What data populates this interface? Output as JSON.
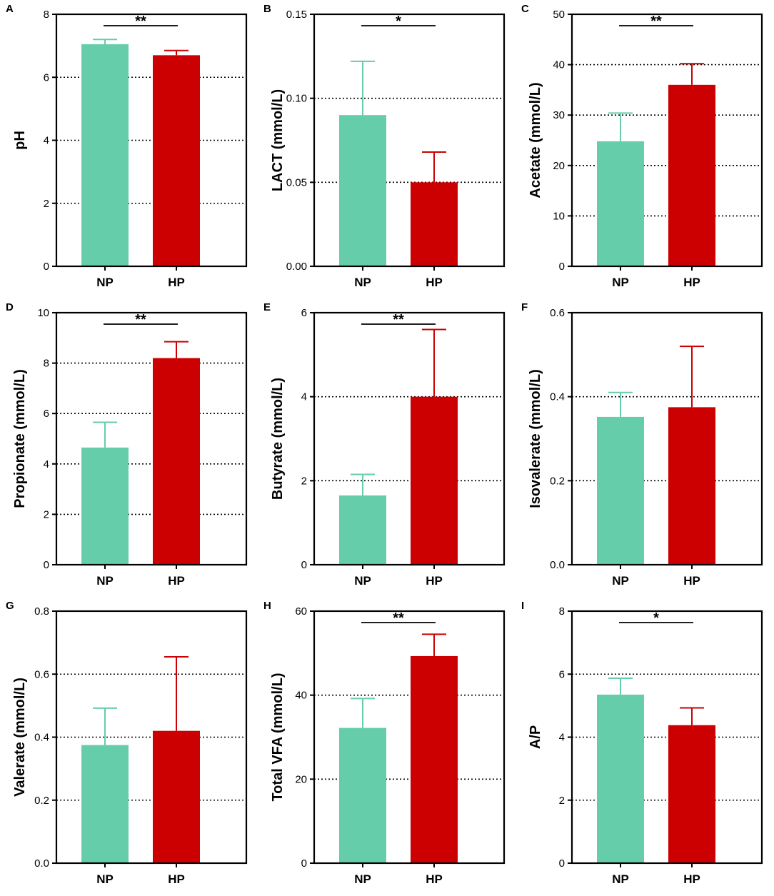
{
  "colors": {
    "NP": "#66cdaa",
    "HP": "#cc0000",
    "axis": "#000000"
  },
  "chart_data": [
    {
      "panel": "A",
      "type": "bar",
      "ylabel": "pH",
      "categories": [
        "NP",
        "HP"
      ],
      "values": [
        7.05,
        6.7
      ],
      "errors": [
        0.15,
        0.15
      ],
      "ylim": [
        0,
        8
      ],
      "ticks": [
        "0",
        "2",
        "4",
        "6",
        "8"
      ],
      "tick_values": [
        0,
        2,
        4,
        6,
        8
      ],
      "gridlines": [
        2,
        4,
        6
      ],
      "significance": "**"
    },
    {
      "panel": "B",
      "type": "bar",
      "ylabel": "LACT (mmol/L)",
      "categories": [
        "NP",
        "HP"
      ],
      "values": [
        0.09,
        0.05
      ],
      "errors": [
        0.032,
        0.018
      ],
      "ylim": [
        0,
        0.15
      ],
      "ticks": [
        "0.00",
        "0.05",
        "0.10",
        "0.15"
      ],
      "tick_values": [
        0,
        0.05,
        0.1,
        0.15
      ],
      "gridlines": [
        0.05,
        0.1
      ],
      "significance": "*"
    },
    {
      "panel": "C",
      "type": "bar",
      "ylabel": "Acetate (mmol/L)",
      "categories": [
        "NP",
        "HP"
      ],
      "values": [
        24.8,
        36
      ],
      "errors": [
        5.6,
        4.2
      ],
      "ylim": [
        0,
        50
      ],
      "ticks": [
        "0",
        "10",
        "20",
        "30",
        "40",
        "50"
      ],
      "tick_values": [
        0,
        10,
        20,
        30,
        40,
        50
      ],
      "gridlines": [
        10,
        20,
        30,
        40
      ],
      "significance": "**"
    },
    {
      "panel": "D",
      "type": "bar",
      "ylabel": "Propionate (mmol/L)",
      "categories": [
        "NP",
        "HP"
      ],
      "values": [
        4.65,
        8.2
      ],
      "errors": [
        1.0,
        0.65
      ],
      "ylim": [
        0,
        10
      ],
      "ticks": [
        "0",
        "2",
        "4",
        "6",
        "8",
        "10"
      ],
      "tick_values": [
        0,
        2,
        4,
        6,
        8,
        10
      ],
      "gridlines": [
        2,
        4,
        6,
        8
      ],
      "significance": "**"
    },
    {
      "panel": "E",
      "type": "bar",
      "ylabel": "Butyrate (mmol/L)",
      "categories": [
        "NP",
        "HP"
      ],
      "values": [
        1.65,
        4.0
      ],
      "errors": [
        0.5,
        1.6
      ],
      "ylim": [
        0,
        6
      ],
      "ticks": [
        "0",
        "2",
        "4",
        "6"
      ],
      "tick_values": [
        0,
        2,
        4,
        6
      ],
      "gridlines": [
        2,
        4
      ],
      "significance": "**"
    },
    {
      "panel": "F",
      "type": "bar",
      "ylabel": "Isovalerate (mmol/L)",
      "categories": [
        "NP",
        "HP"
      ],
      "values": [
        0.352,
        0.375
      ],
      "errors": [
        0.058,
        0.145
      ],
      "ylim": [
        0,
        0.6
      ],
      "ticks": [
        "0.0",
        "0.2",
        "0.4",
        "0.6"
      ],
      "tick_values": [
        0,
        0.2,
        0.4,
        0.6
      ],
      "gridlines": [
        0.2,
        0.4
      ],
      "significance": ""
    },
    {
      "panel": "G",
      "type": "bar",
      "ylabel": "Valerate (mmol/L)",
      "categories": [
        "NP",
        "HP"
      ],
      "values": [
        0.375,
        0.42
      ],
      "errors": [
        0.117,
        0.235
      ],
      "ylim": [
        0,
        0.8
      ],
      "ticks": [
        "0.0",
        "0.2",
        "0.4",
        "0.6",
        "0.8"
      ],
      "tick_values": [
        0,
        0.2,
        0.4,
        0.6,
        0.8
      ],
      "gridlines": [
        0.2,
        0.4,
        0.6
      ],
      "significance": ""
    },
    {
      "panel": "H",
      "type": "bar",
      "ylabel": "Total VFA (mmol/L)",
      "categories": [
        "NP",
        "HP"
      ],
      "values": [
        32.2,
        49.3
      ],
      "errors": [
        7.0,
        5.2
      ],
      "ylim": [
        0,
        60
      ],
      "ticks": [
        "0",
        "20",
        "40",
        "60"
      ],
      "tick_values": [
        0,
        20,
        40,
        60
      ],
      "gridlines": [
        20,
        40
      ],
      "significance": "**"
    },
    {
      "panel": "I",
      "type": "bar",
      "ylabel": "A/P",
      "categories": [
        "NP",
        "HP"
      ],
      "values": [
        5.35,
        4.38
      ],
      "errors": [
        0.52,
        0.55
      ],
      "ylim": [
        0,
        8
      ],
      "ticks": [
        "0",
        "2",
        "4",
        "6",
        "8"
      ],
      "tick_values": [
        0,
        2,
        4,
        6,
        8
      ],
      "gridlines": [
        2,
        4,
        6
      ],
      "significance": "*"
    }
  ]
}
